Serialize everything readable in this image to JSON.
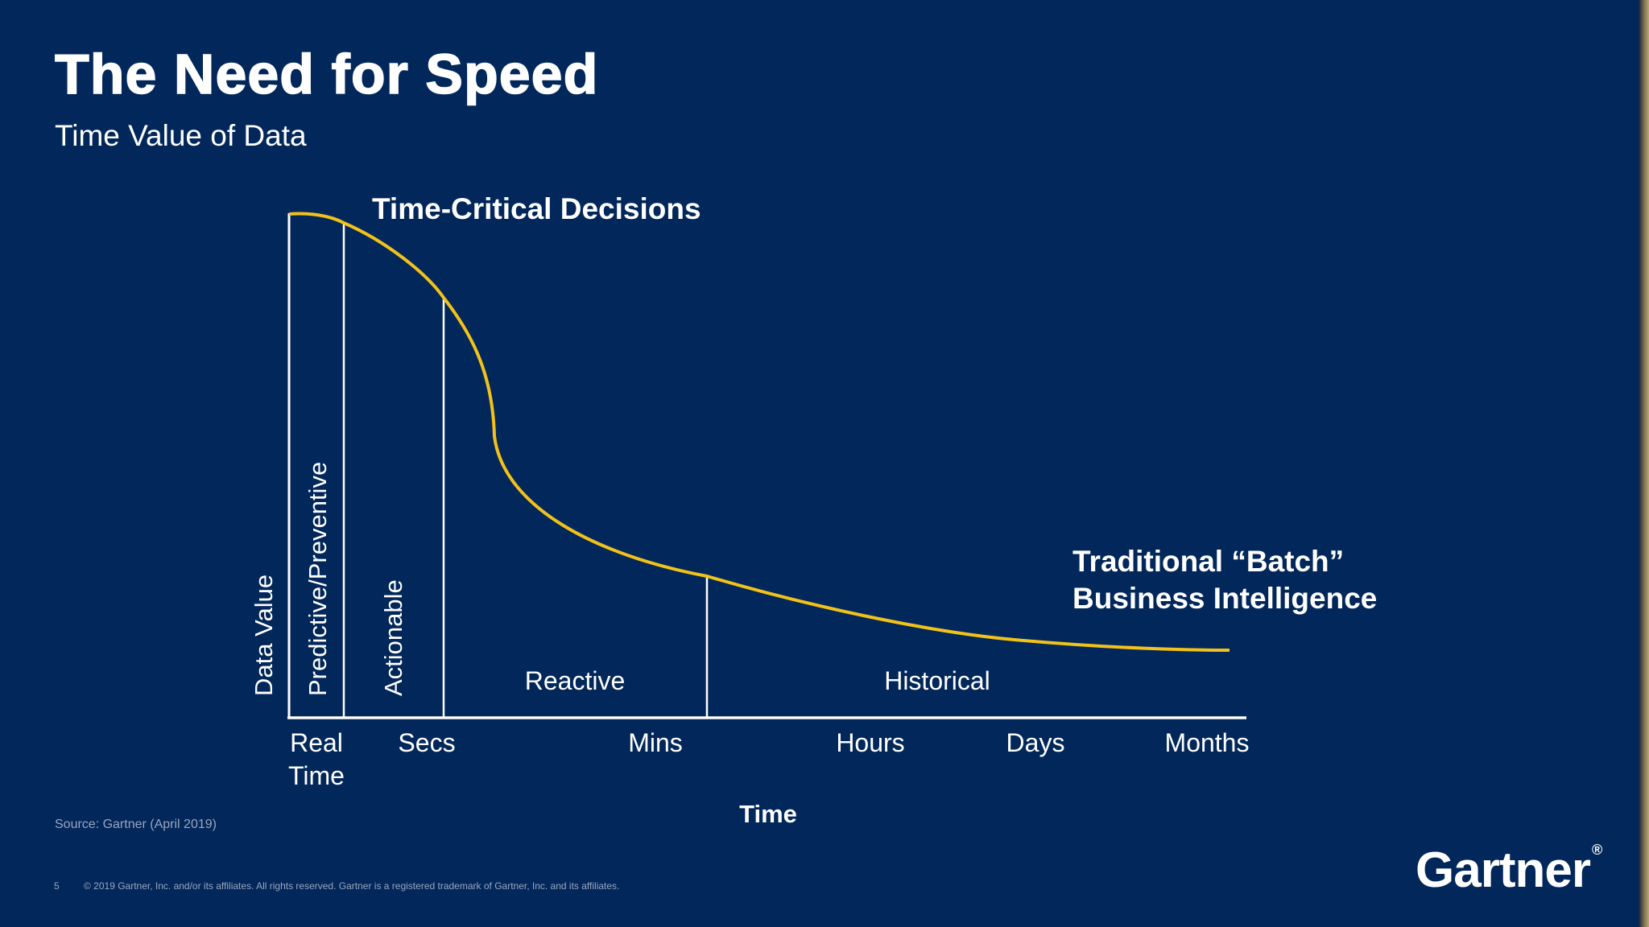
{
  "slide": {
    "title": "The Need for Speed",
    "subtitle": "Time Value of Data",
    "source": "Source: Gartner (April 2019)",
    "page_number": "5",
    "copyright": "© 2019 Gartner, Inc. and/or its affiliates. All rights reserved. Gartner is a registered trademark of Gartner, Inc. and its affiliates.",
    "logo_text": "Gartner",
    "logo_mark": "®"
  },
  "diagram": {
    "y_axis_label": "Data Value",
    "x_axis_label": "Time",
    "x_ticks": [
      {
        "line1": "Real",
        "line2": "Time"
      },
      {
        "line1": "Secs",
        "line2": ""
      },
      {
        "line1": "Mins",
        "line2": ""
      },
      {
        "line1": "Hours",
        "line2": ""
      },
      {
        "line1": "Days",
        "line2": ""
      },
      {
        "line1": "Months",
        "line2": ""
      }
    ],
    "zones": {
      "predictive": "Predictive/Preventive",
      "actionable": "Actionable",
      "reactive": "Reactive",
      "historical": "Historical"
    },
    "annotations": {
      "time_critical": "Time-Critical Decisions",
      "batch_line1": "Traditional “Batch”",
      "batch_line2": "Business Intelligence"
    },
    "colors": {
      "background": "#02275a",
      "curve": "#f2c21a",
      "lines": "#ffffff"
    }
  }
}
